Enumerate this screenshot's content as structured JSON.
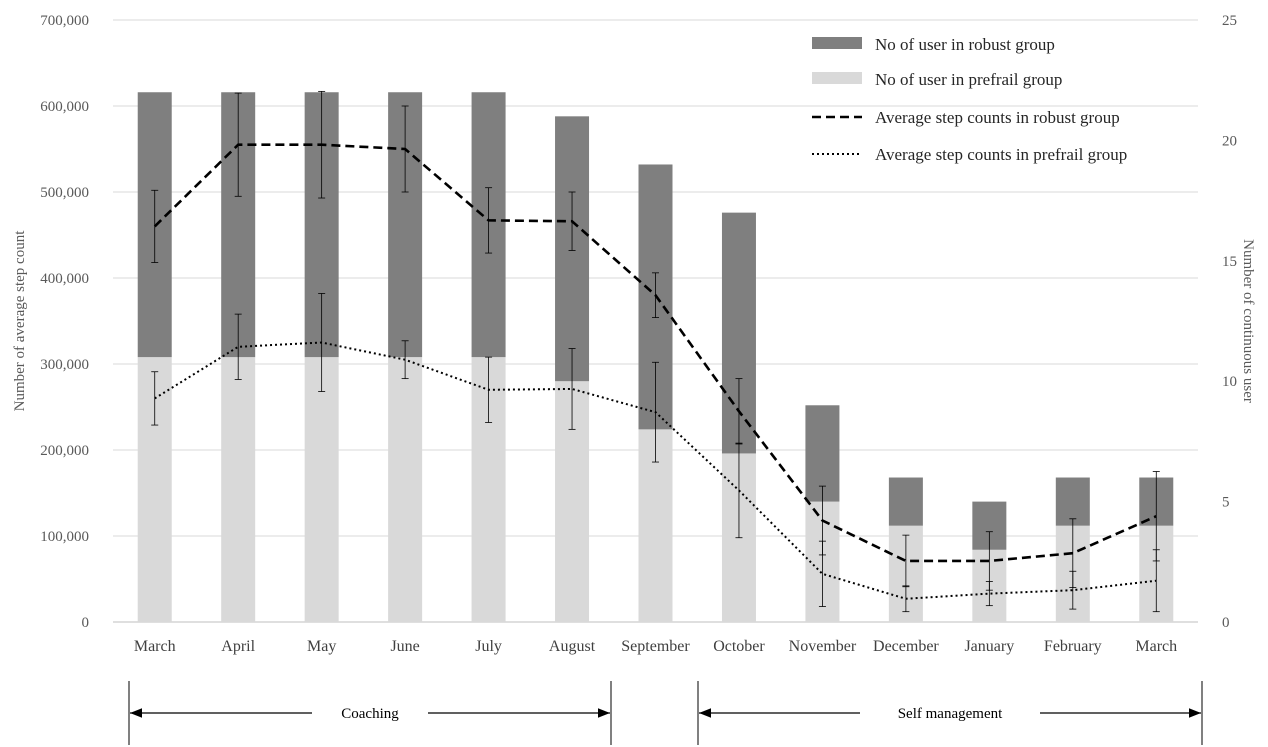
{
  "chart_data": {
    "type": "bar",
    "categories": [
      "March",
      "April",
      "May",
      "June",
      "July",
      "August",
      "September",
      "October",
      "November",
      "December",
      "January",
      "February",
      "March"
    ],
    "y_left": {
      "label": "Number of average step count",
      "lim": [
        0,
        700000
      ],
      "ticks": [
        0,
        100000,
        200000,
        300000,
        400000,
        500000,
        600000,
        700000
      ],
      "tick_labels": [
        "0",
        "100,000",
        "200,000",
        "300,000",
        "400,000",
        "500,000",
        "600,000",
        "700,000"
      ]
    },
    "y_right": {
      "label": "Number of continuous user",
      "lim": [
        0,
        25
      ],
      "ticks": [
        0,
        5,
        10,
        15,
        20,
        25
      ],
      "tick_labels": [
        "0",
        "5",
        "10",
        "15",
        "20",
        "25"
      ]
    },
    "grid": true,
    "legend_position": "top-right",
    "series": [
      {
        "name": "No of user in robust group",
        "kind": "stacked-bar",
        "axis": "right",
        "color": "#7f7f7f",
        "values": [
          11,
          11,
          11,
          11,
          11,
          11,
          11,
          10,
          4,
          2,
          2,
          2,
          2
        ]
      },
      {
        "name": "No of user in prefrail group",
        "kind": "stacked-bar",
        "axis": "right",
        "color": "#d9d9d9",
        "values": [
          11,
          11,
          11,
          11,
          11,
          10,
          8,
          7,
          5,
          4,
          3,
          4,
          4
        ]
      },
      {
        "name": "Average step counts in robust group",
        "kind": "line",
        "style": "dashed",
        "axis": "left",
        "color": "#000000",
        "values": [
          460000,
          555000,
          555000,
          550000,
          467000,
          466000,
          380000,
          245000,
          118000,
          71000,
          71000,
          80000,
          123000
        ],
        "error": [
          42000,
          60000,
          62000,
          50000,
          38000,
          34000,
          26000,
          38000,
          40000,
          30000,
          34000,
          40000,
          52000
        ]
      },
      {
        "name": "Average step counts in prefrail group",
        "kind": "line",
        "style": "dotted",
        "axis": "left",
        "color": "#000000",
        "values": [
          260000,
          320000,
          325000,
          305000,
          270000,
          271000,
          244000,
          153000,
          56000,
          27000,
          33000,
          37000,
          48000
        ],
        "error": [
          31000,
          38000,
          57000,
          22000,
          38000,
          47000,
          58000,
          55000,
          38000,
          15000,
          14000,
          22000,
          36000
        ]
      }
    ],
    "phases": [
      {
        "label": "Coaching",
        "from": "March",
        "to": "August"
      },
      {
        "label": "Self management",
        "from": "October",
        "to": "March"
      }
    ]
  }
}
